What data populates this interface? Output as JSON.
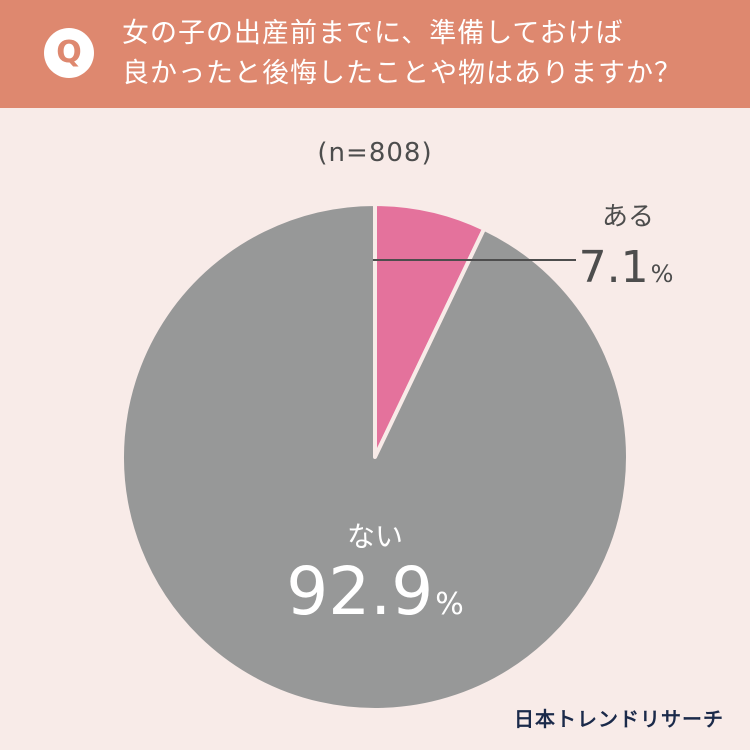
{
  "header": {
    "badge": "Q",
    "question_line1": "女の子の出産前までに、準備しておけば",
    "question_line2": "良かったと後悔したことや物はありますか？"
  },
  "sample_label": "(n=808)",
  "chart_data": {
    "type": "pie",
    "title": "女の子の出産前までに、準備しておけば良かったと後悔したことや物はありますか？",
    "note": "(n=808)",
    "slices": [
      {
        "label": "ある",
        "value": 7.1,
        "value_text": "7.1",
        "unit": "%",
        "color": "#e4729c"
      },
      {
        "label": "ない",
        "value": 92.9,
        "value_text": "92.9",
        "unit": "%",
        "color": "#979898"
      }
    ],
    "start": "12 o'clock",
    "direction": "clockwise",
    "legend": "none"
  },
  "colors": {
    "header_bg": "#de886f",
    "page_bg": "#f8ebe8",
    "separator": "#f8ebe8",
    "leader_line": "#4d4d4d",
    "dark_text": "#4d4d4d",
    "brand_text": "#1b2a4a"
  },
  "footer": {
    "brand": "日本トレンドリサーチ"
  }
}
